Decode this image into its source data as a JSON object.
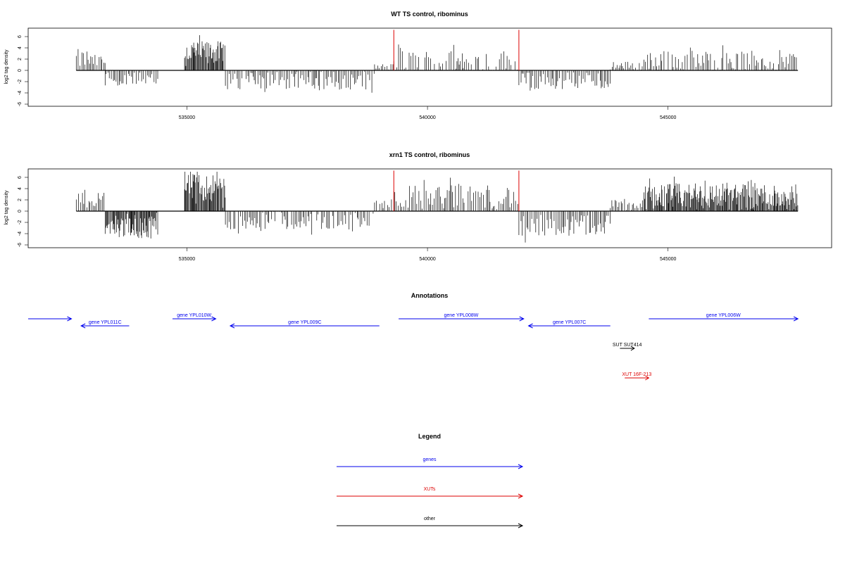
{
  "chart_data": [
    {
      "type": "bar",
      "title": "WT TS control, ribominus",
      "xlabel": "",
      "ylabel": "log2 tag density",
      "xlim": [
        531700,
        548400
      ],
      "ylim": [
        -6,
        7.5
      ],
      "yticks": [
        -6,
        -4,
        -2,
        0,
        2,
        4,
        6
      ],
      "xticks": [
        535000,
        540000,
        545000
      ],
      "xtick_labels": [
        "535000",
        "540000",
        "545000"
      ],
      "markers": [
        539300,
        541900
      ],
      "marker_color": "#dd0000",
      "bar_color": "#000000",
      "segments": [
        {
          "start": 532700,
          "end": 533000,
          "sign": 1,
          "mean": 2.0,
          "amp": 1.8
        },
        {
          "start": 533000,
          "end": 533300,
          "sign": 1,
          "mean": 1.6,
          "amp": 1.2
        },
        {
          "start": 533300,
          "end": 534400,
          "sign": -1,
          "mean": 1.6,
          "amp": 1.2
        },
        {
          "start": 534950,
          "end": 535800,
          "sign": 1,
          "mean": 3.2,
          "amp": 2.0
        },
        {
          "start": 535800,
          "end": 538900,
          "sign": -1,
          "mean": 1.8,
          "amp": 1.6
        },
        {
          "start": 538900,
          "end": 539300,
          "sign": 1,
          "mean": 0.6,
          "amp": 0.6
        },
        {
          "start": 539300,
          "end": 541900,
          "sign": 1,
          "mean": 1.2,
          "amp": 2.5
        },
        {
          "start": 541900,
          "end": 543800,
          "sign": -1,
          "mean": 1.8,
          "amp": 1.6
        },
        {
          "start": 543800,
          "end": 544500,
          "sign": 1,
          "mean": 0.8,
          "amp": 0.8
        },
        {
          "start": 544500,
          "end": 547700,
          "sign": 1,
          "mean": 1.6,
          "amp": 2.0
        }
      ]
    },
    {
      "type": "bar",
      "title": "xrn1 TS control, ribominus",
      "xlabel": "",
      "ylabel": "log2 tag density",
      "xlim": [
        531700,
        548400
      ],
      "ylim": [
        -6,
        7.5
      ],
      "yticks": [
        -6,
        -4,
        -2,
        0,
        2,
        4,
        6
      ],
      "xticks": [
        535000,
        540000,
        545000
      ],
      "xtick_labels": [
        "535000",
        "540000",
        "545000"
      ],
      "markers": [
        539300,
        541900
      ],
      "marker_color": "#dd0000",
      "bar_color": "#000000",
      "segments": [
        {
          "start": 532700,
          "end": 533300,
          "sign": 1,
          "mean": 2.2,
          "amp": 1.6
        },
        {
          "start": 533300,
          "end": 534400,
          "sign": -1,
          "mean": 2.8,
          "amp": 2.0
        },
        {
          "start": 534950,
          "end": 535800,
          "sign": 1,
          "mean": 4.2,
          "amp": 2.5
        },
        {
          "start": 535800,
          "end": 538900,
          "sign": -1,
          "mean": 1.6,
          "amp": 2.0
        },
        {
          "start": 538900,
          "end": 539300,
          "sign": 1,
          "mean": 1.2,
          "amp": 1.2
        },
        {
          "start": 539300,
          "end": 541900,
          "sign": 1,
          "mean": 2.5,
          "amp": 2.2
        },
        {
          "start": 541900,
          "end": 543800,
          "sign": -1,
          "mean": 2.4,
          "amp": 2.0
        },
        {
          "start": 543800,
          "end": 544500,
          "sign": 1,
          "mean": 1.0,
          "amp": 1.0
        },
        {
          "start": 544500,
          "end": 547700,
          "sign": 1,
          "mean": 2.6,
          "amp": 2.4
        }
      ]
    }
  ],
  "annotations": {
    "title": "Annotations",
    "genes": [
      {
        "label": "",
        "start": 531700,
        "end": 532600,
        "strand": "+",
        "row": 0
      },
      {
        "label": "gene YPL011C",
        "start": 533800,
        "end": 532800,
        "strand": "-",
        "row": 1
      },
      {
        "label": "gene YPL010W",
        "start": 534700,
        "end": 535600,
        "strand": "+",
        "row": 0
      },
      {
        "label": "gene YPL009C",
        "start": 539000,
        "end": 535900,
        "strand": "-",
        "row": 1
      },
      {
        "label": "gene YPL008W",
        "start": 539400,
        "end": 542000,
        "strand": "+",
        "row": 0
      },
      {
        "label": "gene YPL007C",
        "start": 543800,
        "end": 542100,
        "strand": "-",
        "row": 1
      },
      {
        "label": "gene YPL006W",
        "start": 544600,
        "end": 547700,
        "strand": "+",
        "row": 0
      }
    ],
    "others": [
      {
        "label": "SUT SUT414",
        "start": 544000,
        "end": 544300,
        "strand": "+",
        "color": "#000000"
      },
      {
        "label": "XUT 16F-213",
        "start": 544100,
        "end": 544600,
        "strand": "+",
        "color": "#dd0000"
      }
    ]
  },
  "legend": {
    "title": "Legend",
    "items": [
      {
        "label": "genes",
        "color": "#0000ee"
      },
      {
        "label": "XUTs",
        "color": "#dd0000"
      },
      {
        "label": "other",
        "color": "#000000"
      }
    ]
  }
}
